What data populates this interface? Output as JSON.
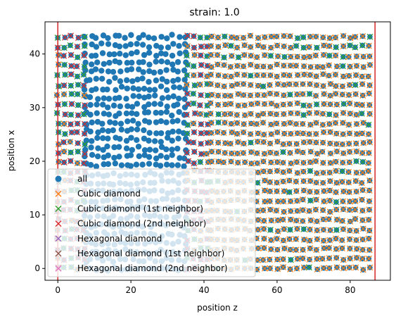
{
  "chart_data": {
    "type": "scatter",
    "title": "strain: 1.0",
    "xlabel": "position z",
    "ylabel": "position x",
    "xlim": [
      -3.5,
      91
    ],
    "ylim": [
      -2.2,
      46
    ],
    "xticks": [
      0,
      20,
      40,
      60,
      80
    ],
    "yticks": [
      0,
      10,
      20,
      30,
      40
    ],
    "grid": false,
    "legend_position": "lower-left",
    "vlines": [
      {
        "x": 0,
        "color": "#d62728"
      },
      {
        "x": 86.8,
        "color": "#d62728"
      }
    ],
    "regions": {
      "atoms_x_range": [
        0,
        43.5
      ],
      "amorphous_block_z": [
        7.5,
        35.5
      ],
      "interface_left_z": [
        0,
        7.5
      ],
      "interface_right_z": [
        35.5,
        42
      ],
      "crystal_z": [
        42,
        86.8
      ],
      "lattice_spacing_z": 3.6,
      "lattice_spacing_x": 3.6
    },
    "series": [
      {
        "name": "all",
        "marker": "o",
        "color": "#1f77b4"
      },
      {
        "name": "Cubic diamond",
        "marker": "x",
        "color": "#ff7f0e"
      },
      {
        "name": "Cubic diamond (1st neighbor)",
        "marker": "x",
        "color": "#2ca02c"
      },
      {
        "name": "Cubic diamond (2nd neighbor)",
        "marker": "x",
        "color": "#d62728"
      },
      {
        "name": "Hexagonal diamond",
        "marker": "x",
        "color": "#9467bd"
      },
      {
        "name": "Hexagonal diamond (1st neighbor)",
        "marker": "x",
        "color": "#8c564b"
      },
      {
        "name": "Hexagonal diamond (2nd neighbor)",
        "marker": "x",
        "color": "#e377c2"
      }
    ]
  }
}
